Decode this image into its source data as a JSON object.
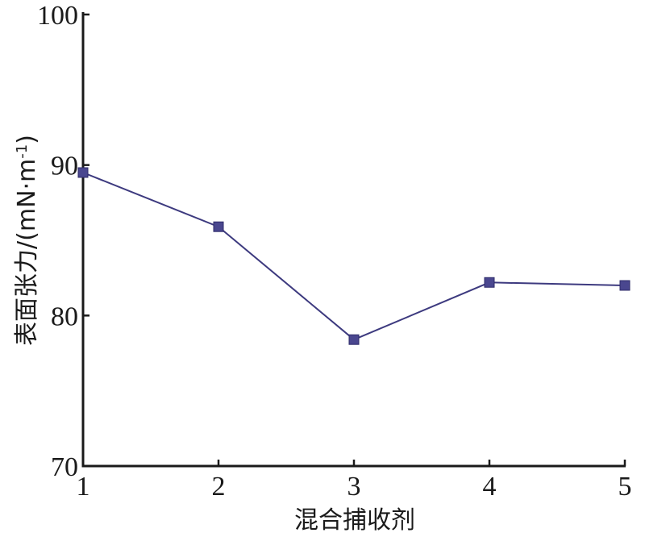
{
  "chart_data": {
    "type": "line",
    "xlabel": "混合捕收剂",
    "ylabel": "表面张力/(mN·m",
    "ylabel_sup": "-1",
    "ylabel_close": ")",
    "x": [
      1,
      2,
      3,
      4,
      5
    ],
    "xlim": [
      1,
      5
    ],
    "ylim": [
      70,
      100
    ],
    "xticks": [
      "1",
      "2",
      "3",
      "4",
      "5"
    ],
    "yticks": [
      "70",
      "80",
      "90",
      "100"
    ],
    "series": [
      {
        "values": [
          89.5,
          85.9,
          78.4,
          82.2,
          82.0
        ]
      }
    ],
    "grid": false,
    "colors": {
      "series": "#3d3a7f",
      "marker": "#4a478f"
    }
  }
}
